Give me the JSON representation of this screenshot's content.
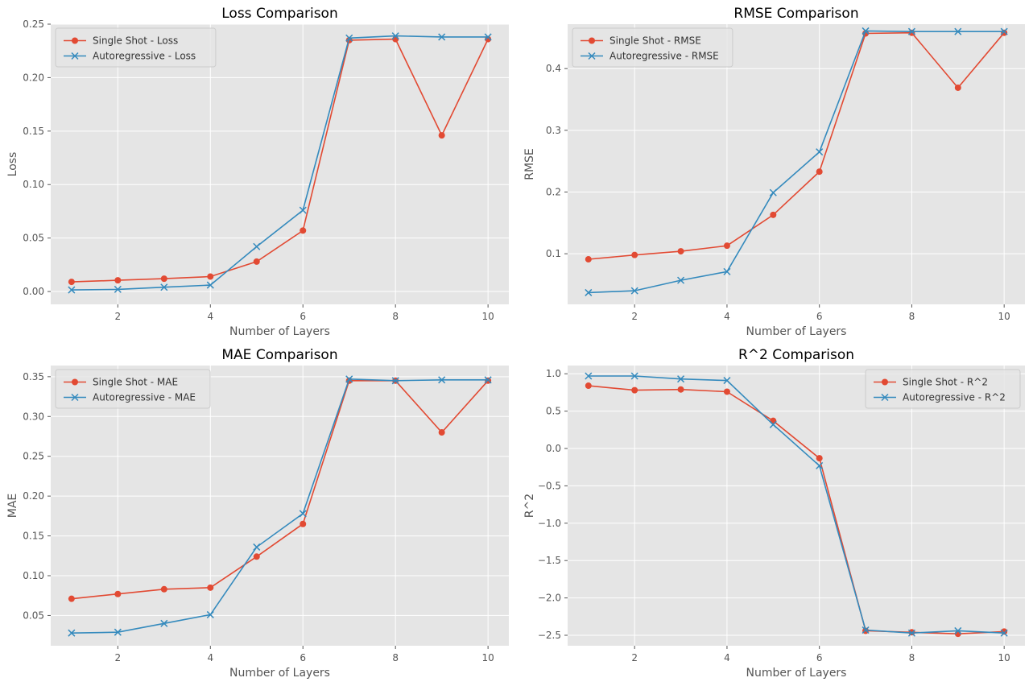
{
  "colors": {
    "series_a": "#e24a33",
    "series_b": "#348abd",
    "plot_bg": "#e5e5e5",
    "grid": "#ffffff",
    "tick_text": "#555555",
    "title_text": "#000000",
    "axis_label_text": "#555555"
  },
  "chart_data": [
    {
      "type": "line",
      "title": "Loss Comparison",
      "xlabel": "Number of Layers",
      "ylabel": "Loss",
      "x": [
        1,
        2,
        3,
        4,
        5,
        6,
        7,
        8,
        9,
        10
      ],
      "xlim": [
        0.55,
        10.45
      ],
      "ylim": [
        -0.012,
        0.25
      ],
      "xticks": [
        2,
        4,
        6,
        8,
        10
      ],
      "xtick_labels": [
        "2",
        "4",
        "6",
        "8",
        "10"
      ],
      "yticks": [
        0.0,
        0.05,
        0.1,
        0.15,
        0.2,
        0.25
      ],
      "ytick_labels": [
        "0.00",
        "0.05",
        "0.10",
        "0.15",
        "0.20",
        "0.25"
      ],
      "legend_position": "upper-left",
      "series": [
        {
          "name": "Single Shot - Loss",
          "marker": "circle",
          "color": "#e24a33",
          "values": [
            0.009,
            0.0105,
            0.012,
            0.014,
            0.028,
            0.057,
            0.235,
            0.236,
            0.146,
            0.236
          ]
        },
        {
          "name": "Autoregressive - Loss",
          "marker": "x",
          "color": "#348abd",
          "values": [
            0.0015,
            0.002,
            0.004,
            0.006,
            0.042,
            0.076,
            0.237,
            0.239,
            0.238,
            0.238
          ]
        }
      ]
    },
    {
      "type": "line",
      "title": "RMSE Comparison",
      "xlabel": "Number of Layers",
      "ylabel": "RMSE",
      "x": [
        1,
        2,
        3,
        4,
        5,
        6,
        7,
        8,
        9,
        10
      ],
      "xlim": [
        0.55,
        10.45
      ],
      "ylim": [
        0.018,
        0.472
      ],
      "xticks": [
        2,
        4,
        6,
        8,
        10
      ],
      "xtick_labels": [
        "2",
        "4",
        "6",
        "8",
        "10"
      ],
      "yticks": [
        0.1,
        0.2,
        0.3,
        0.4
      ],
      "ytick_labels": [
        "0.1",
        "0.2",
        "0.3",
        "0.4"
      ],
      "legend_position": "upper-left",
      "series": [
        {
          "name": "Single Shot - RMSE",
          "marker": "circle",
          "color": "#e24a33",
          "values": [
            0.091,
            0.098,
            0.104,
            0.113,
            0.163,
            0.233,
            0.457,
            0.458,
            0.369,
            0.458
          ]
        },
        {
          "name": "Autoregressive - RMSE",
          "marker": "x",
          "color": "#348abd",
          "values": [
            0.037,
            0.04,
            0.057,
            0.071,
            0.199,
            0.265,
            0.461,
            0.46,
            0.46,
            0.46
          ]
        }
      ]
    },
    {
      "type": "line",
      "title": "MAE Comparison",
      "xlabel": "Number of Layers",
      "ylabel": "MAE",
      "x": [
        1,
        2,
        3,
        4,
        5,
        6,
        7,
        8,
        9,
        10
      ],
      "xlim": [
        0.55,
        10.45
      ],
      "ylim": [
        0.012,
        0.364
      ],
      "xticks": [
        2,
        4,
        6,
        8,
        10
      ],
      "xtick_labels": [
        "2",
        "4",
        "6",
        "8",
        "10"
      ],
      "yticks": [
        0.05,
        0.1,
        0.15,
        0.2,
        0.25,
        0.3,
        0.35
      ],
      "ytick_labels": [
        "0.05",
        "0.10",
        "0.15",
        "0.20",
        "0.25",
        "0.30",
        "0.35"
      ],
      "legend_position": "upper-left",
      "series": [
        {
          "name": "Single Shot - MAE",
          "marker": "circle",
          "color": "#e24a33",
          "values": [
            0.071,
            0.077,
            0.083,
            0.085,
            0.124,
            0.165,
            0.345,
            0.345,
            0.28,
            0.345
          ]
        },
        {
          "name": "Autoregressive - MAE",
          "marker": "x",
          "color": "#348abd",
          "values": [
            0.028,
            0.029,
            0.04,
            0.051,
            0.136,
            0.178,
            0.347,
            0.345,
            0.346,
            0.346
          ]
        }
      ]
    },
    {
      "type": "line",
      "title": "R^2 Comparison",
      "xlabel": "Number of Layers",
      "ylabel": "R^2",
      "x": [
        1,
        2,
        3,
        4,
        5,
        6,
        7,
        8,
        9,
        10
      ],
      "xlim": [
        0.55,
        10.45
      ],
      "ylim": [
        -2.64,
        1.11
      ],
      "xticks": [
        2,
        4,
        6,
        8,
        10
      ],
      "xtick_labels": [
        "2",
        "4",
        "6",
        "8",
        "10"
      ],
      "yticks": [
        1.0,
        0.5,
        0.0,
        -0.5,
        -1.0,
        -1.5,
        -2.0,
        -2.5
      ],
      "ytick_labels": [
        "1.0",
        "0.5",
        "0.0",
        "−0.5",
        "−1.0",
        "−1.5",
        "−2.0",
        "−2.5"
      ],
      "legend_position": "upper-right",
      "series": [
        {
          "name": "Single Shot - R^2",
          "marker": "circle",
          "color": "#e24a33",
          "values": [
            0.84,
            0.78,
            0.79,
            0.76,
            0.37,
            -0.13,
            -2.44,
            -2.46,
            -2.48,
            -2.45
          ]
        },
        {
          "name": "Autoregressive - R^2",
          "marker": "x",
          "color": "#348abd",
          "values": [
            0.97,
            0.97,
            0.93,
            0.91,
            0.32,
            -0.23,
            -2.43,
            -2.47,
            -2.44,
            -2.47
          ]
        }
      ]
    }
  ]
}
